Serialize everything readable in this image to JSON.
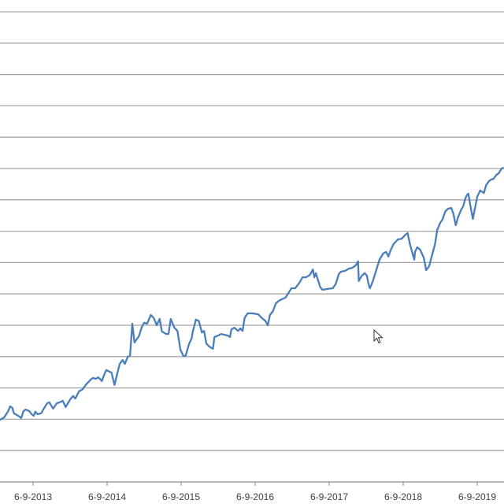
{
  "chart_data": {
    "type": "line",
    "title": "",
    "xlabel": "",
    "ylabel": "",
    "x_tick_labels": [
      "6-9-2013",
      "6-9-2014",
      "6-9-2015",
      "6-9-2016",
      "6-9-2017",
      "6-9-2018",
      "6-9-2019"
    ],
    "x_tick_years": [
      2013.68,
      2014.68,
      2015.68,
      2016.68,
      2017.68,
      2018.68,
      2019.68
    ],
    "xlim": [
      2013.23,
      2020.04
    ],
    "ylim": [
      0,
      15
    ],
    "y_axis_labels_visible": false,
    "grid": "horizontal",
    "line_color": "#4a7ebb",
    "grid_color": "#a6a6a6",
    "series": [
      {
        "x": [
          2013.23,
          2013.29,
          2013.34,
          2013.37,
          2013.4,
          2013.42,
          2013.48,
          2013.52,
          2013.55,
          2013.58,
          2013.63,
          2013.66,
          2013.69,
          2013.71,
          2013.74,
          2013.79,
          2013.83,
          2013.87,
          2013.9,
          2013.95,
          2014.0,
          2014.04,
          2014.08,
          2014.12,
          2014.15,
          2014.19,
          2014.22,
          2014.25,
          2014.3,
          2014.35,
          2014.4,
          2014.46,
          2014.49,
          2014.53,
          2014.56,
          2014.61,
          2014.64,
          2014.67,
          2014.71,
          2014.74,
          2014.78,
          2014.82,
          2014.85,
          2014.89,
          2014.92,
          2014.96,
          2014.99,
          2015.02,
          2015.05,
          2015.11,
          2015.15,
          2015.18,
          2015.22,
          2015.27,
          2015.31,
          2015.35,
          2015.39,
          2015.42,
          2015.48,
          2015.51,
          2015.54,
          2015.59,
          2015.63,
          2015.67,
          2015.71,
          2015.74,
          2015.79,
          2015.82,
          2015.84,
          2015.88,
          2015.92,
          2015.96,
          2015.99,
          2016.02,
          2016.06,
          2016.11,
          2016.13,
          2016.18,
          2016.22,
          2016.31,
          2016.34,
          2016.36,
          2016.4,
          2016.45,
          2016.48,
          2016.51,
          2016.54,
          2016.58,
          2016.64,
          2016.72,
          2016.77,
          2016.82,
          2016.85,
          2016.88,
          2016.92,
          2016.96,
          2017.0,
          2017.04,
          2017.09,
          2017.13,
          2017.17,
          2017.22,
          2017.27,
          2017.32,
          2017.37,
          2017.42,
          2017.46,
          2017.48,
          2017.5,
          2017.53,
          2017.56,
          2017.59,
          2017.67,
          2017.73,
          2017.77,
          2017.81,
          2017.84,
          2017.89,
          2017.95,
          2017.99,
          2018.04,
          2018.07,
          2018.08,
          2018.12,
          2018.16,
          2018.19,
          2018.21,
          2018.23,
          2018.27,
          2018.31,
          2018.36,
          2018.41,
          2018.45,
          2018.48,
          2018.51,
          2018.55,
          2018.61,
          2018.66,
          2018.71,
          2018.74,
          2018.77,
          2018.8,
          2018.83,
          2018.84,
          2018.87,
          2018.91,
          2018.96,
          2018.99,
          2019.03,
          2019.07,
          2019.11,
          2019.14,
          2019.18,
          2019.21,
          2019.25,
          2019.29,
          2019.33,
          2019.36,
          2019.39,
          2019.42,
          2019.46,
          2019.49,
          2019.52,
          2019.54,
          2019.56,
          2019.59,
          2019.62,
          2019.65,
          2019.68,
          2019.72,
          2019.77,
          2019.8,
          2019.84,
          2019.87,
          2019.9,
          2019.94,
          2019.97,
          2020.01,
          2020.04
        ],
        "y": [
          1.98,
          2.06,
          2.24,
          2.41,
          2.36,
          2.19,
          2.11,
          2.04,
          2.26,
          2.31,
          2.26,
          2.16,
          2.11,
          2.24,
          2.16,
          2.19,
          2.36,
          2.51,
          2.54,
          2.34,
          2.51,
          2.54,
          2.59,
          2.39,
          2.51,
          2.66,
          2.74,
          2.66,
          2.89,
          2.96,
          3.12,
          3.27,
          3.32,
          3.29,
          3.34,
          3.22,
          3.42,
          3.57,
          3.52,
          3.49,
          3.09,
          3.49,
          3.77,
          3.89,
          3.77,
          4.0,
          4.02,
          5.05,
          4.45,
          4.65,
          4.95,
          5.08,
          5.05,
          5.33,
          5.23,
          5.0,
          5.2,
          4.8,
          4.72,
          4.72,
          5.2,
          4.92,
          4.82,
          4.22,
          4.02,
          4.02,
          4.42,
          4.57,
          4.82,
          5.18,
          5.13,
          4.77,
          4.82,
          4.42,
          4.32,
          4.25,
          4.62,
          4.67,
          4.72,
          4.67,
          4.62,
          4.87,
          4.92,
          4.82,
          4.9,
          4.82,
          5.25,
          5.38,
          5.38,
          5.35,
          5.23,
          5.13,
          5.0,
          5.33,
          5.45,
          5.7,
          5.78,
          5.83,
          5.88,
          6.03,
          6.18,
          6.18,
          6.33,
          6.53,
          6.53,
          6.61,
          6.78,
          6.53,
          6.66,
          6.43,
          6.21,
          6.13,
          6.16,
          6.18,
          6.33,
          6.63,
          6.71,
          6.73,
          6.81,
          6.83,
          6.91,
          7.04,
          6.41,
          6.58,
          6.66,
          6.58,
          6.33,
          6.18,
          6.41,
          6.71,
          7.09,
          7.29,
          7.34,
          7.19,
          7.39,
          7.59,
          7.74,
          7.76,
          7.89,
          7.94,
          7.59,
          7.34,
          7.09,
          7.34,
          7.49,
          7.41,
          7.14,
          6.76,
          6.88,
          7.24,
          7.59,
          8.04,
          8.27,
          8.37,
          8.64,
          8.72,
          8.74,
          8.54,
          8.19,
          8.44,
          8.67,
          8.79,
          9.05,
          9.15,
          9.2,
          8.79,
          8.39,
          8.74,
          9.1,
          9.3,
          9.22,
          9.47,
          9.6,
          9.65,
          9.67,
          9.8,
          9.85,
          10.0,
          10.03
        ]
      }
    ]
  }
}
